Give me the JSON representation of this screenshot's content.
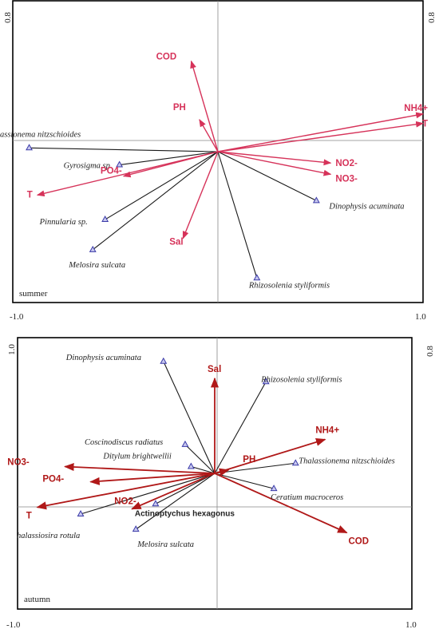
{
  "colors": {
    "env_summer": "#d6335a",
    "env_autumn": "#b01818",
    "species_line": "#1a1a1a",
    "marker": "#3a3aa8"
  },
  "chart_data": [
    {
      "type": "biplot",
      "season": "summer",
      "xlim": [
        -1.0,
        1.0
      ],
      "ylim": [
        -0.8,
        0.8
      ],
      "tick_labels": {
        "x_left": "-1.0",
        "x_right": "1.0",
        "y_left": "0.8",
        "y_right": "0.8"
      },
      "env_vectors": [
        {
          "name": "COD",
          "x": -0.13,
          "y": 0.48
        },
        {
          "name": "PH",
          "x": -0.09,
          "y": 0.17
        },
        {
          "name": "NH4+",
          "x": 1.0,
          "y": 0.2
        },
        {
          "name": "T",
          "x": 1.0,
          "y": 0.15
        },
        {
          "name": "NO2-",
          "x": 0.55,
          "y": -0.06
        },
        {
          "name": "NO3-",
          "x": 0.55,
          "y": -0.12
        },
        {
          "name": "PO4-",
          "x": -0.46,
          "y": -0.13
        },
        {
          "name": "T",
          "x": -0.88,
          "y": -0.23
        },
        {
          "name": "Sal",
          "x": -0.17,
          "y": -0.46
        }
      ],
      "species": [
        {
          "name": "halassionema nitzschioides",
          "x": -0.92,
          "y": 0.02
        },
        {
          "name": "Gyrosigma  sp.",
          "x": -0.48,
          "y": -0.07
        },
        {
          "name": "Pinnularia  sp.",
          "x": -0.55,
          "y": -0.36
        },
        {
          "name": "Melosira sulcata",
          "x": -0.61,
          "y": -0.52
        },
        {
          "name": "Dinophysis acuminata",
          "x": 0.48,
          "y": -0.26
        },
        {
          "name": "Rhizosolenia styliformis",
          "x": 0.19,
          "y": -0.67
        }
      ]
    },
    {
      "type": "biplot",
      "season": "autumn",
      "xlim": [
        -1.0,
        1.0
      ],
      "ylim": [
        -0.8,
        0.8
      ],
      "tick_labels": {
        "x_left": "-1.0",
        "x_right": "1.0",
        "y_left": "1.0",
        "y_right": "0.8"
      },
      "env_vectors": [
        {
          "name": "Sal",
          "x": 0.0,
          "y": 0.56
        },
        {
          "name": "NH4+",
          "x": 0.56,
          "y": 0.2
        },
        {
          "name": "PH",
          "x": 0.07,
          "y": 0.02
        },
        {
          "name": "NO3-",
          "x": -0.76,
          "y": 0.04
        },
        {
          "name": "PO4-",
          "x": -0.63,
          "y": -0.05
        },
        {
          "name": "NO2-",
          "x": -0.42,
          "y": -0.21
        },
        {
          "name": "T",
          "x": -0.9,
          "y": -0.2
        },
        {
          "name": "COD",
          "x": 0.67,
          "y": -0.35
        }
      ],
      "species": [
        {
          "name": "Dinophysis acuminata",
          "x": -0.26,
          "y": 0.66
        },
        {
          "name": "Rhizosolenia styliformis",
          "x": 0.26,
          "y": 0.54
        },
        {
          "name": "Coscinodiscus radiatus",
          "x": -0.15,
          "y": 0.17
        },
        {
          "name": "Ditylum brightwellii",
          "x": -0.12,
          "y": 0.04
        },
        {
          "name": "Thalassionema nitzschioides",
          "x": 0.41,
          "y": 0.06
        },
        {
          "name": "Ceratium macroceros",
          "x": 0.3,
          "y": -0.09
        },
        {
          "name": "Actinoptychus hexagonus",
          "x": -0.3,
          "y": -0.18
        },
        {
          "name": "halassiosira rotula",
          "x": -0.68,
          "y": -0.24
        },
        {
          "name": "Melosira sulcata",
          "x": -0.4,
          "y": -0.33
        }
      ]
    }
  ]
}
